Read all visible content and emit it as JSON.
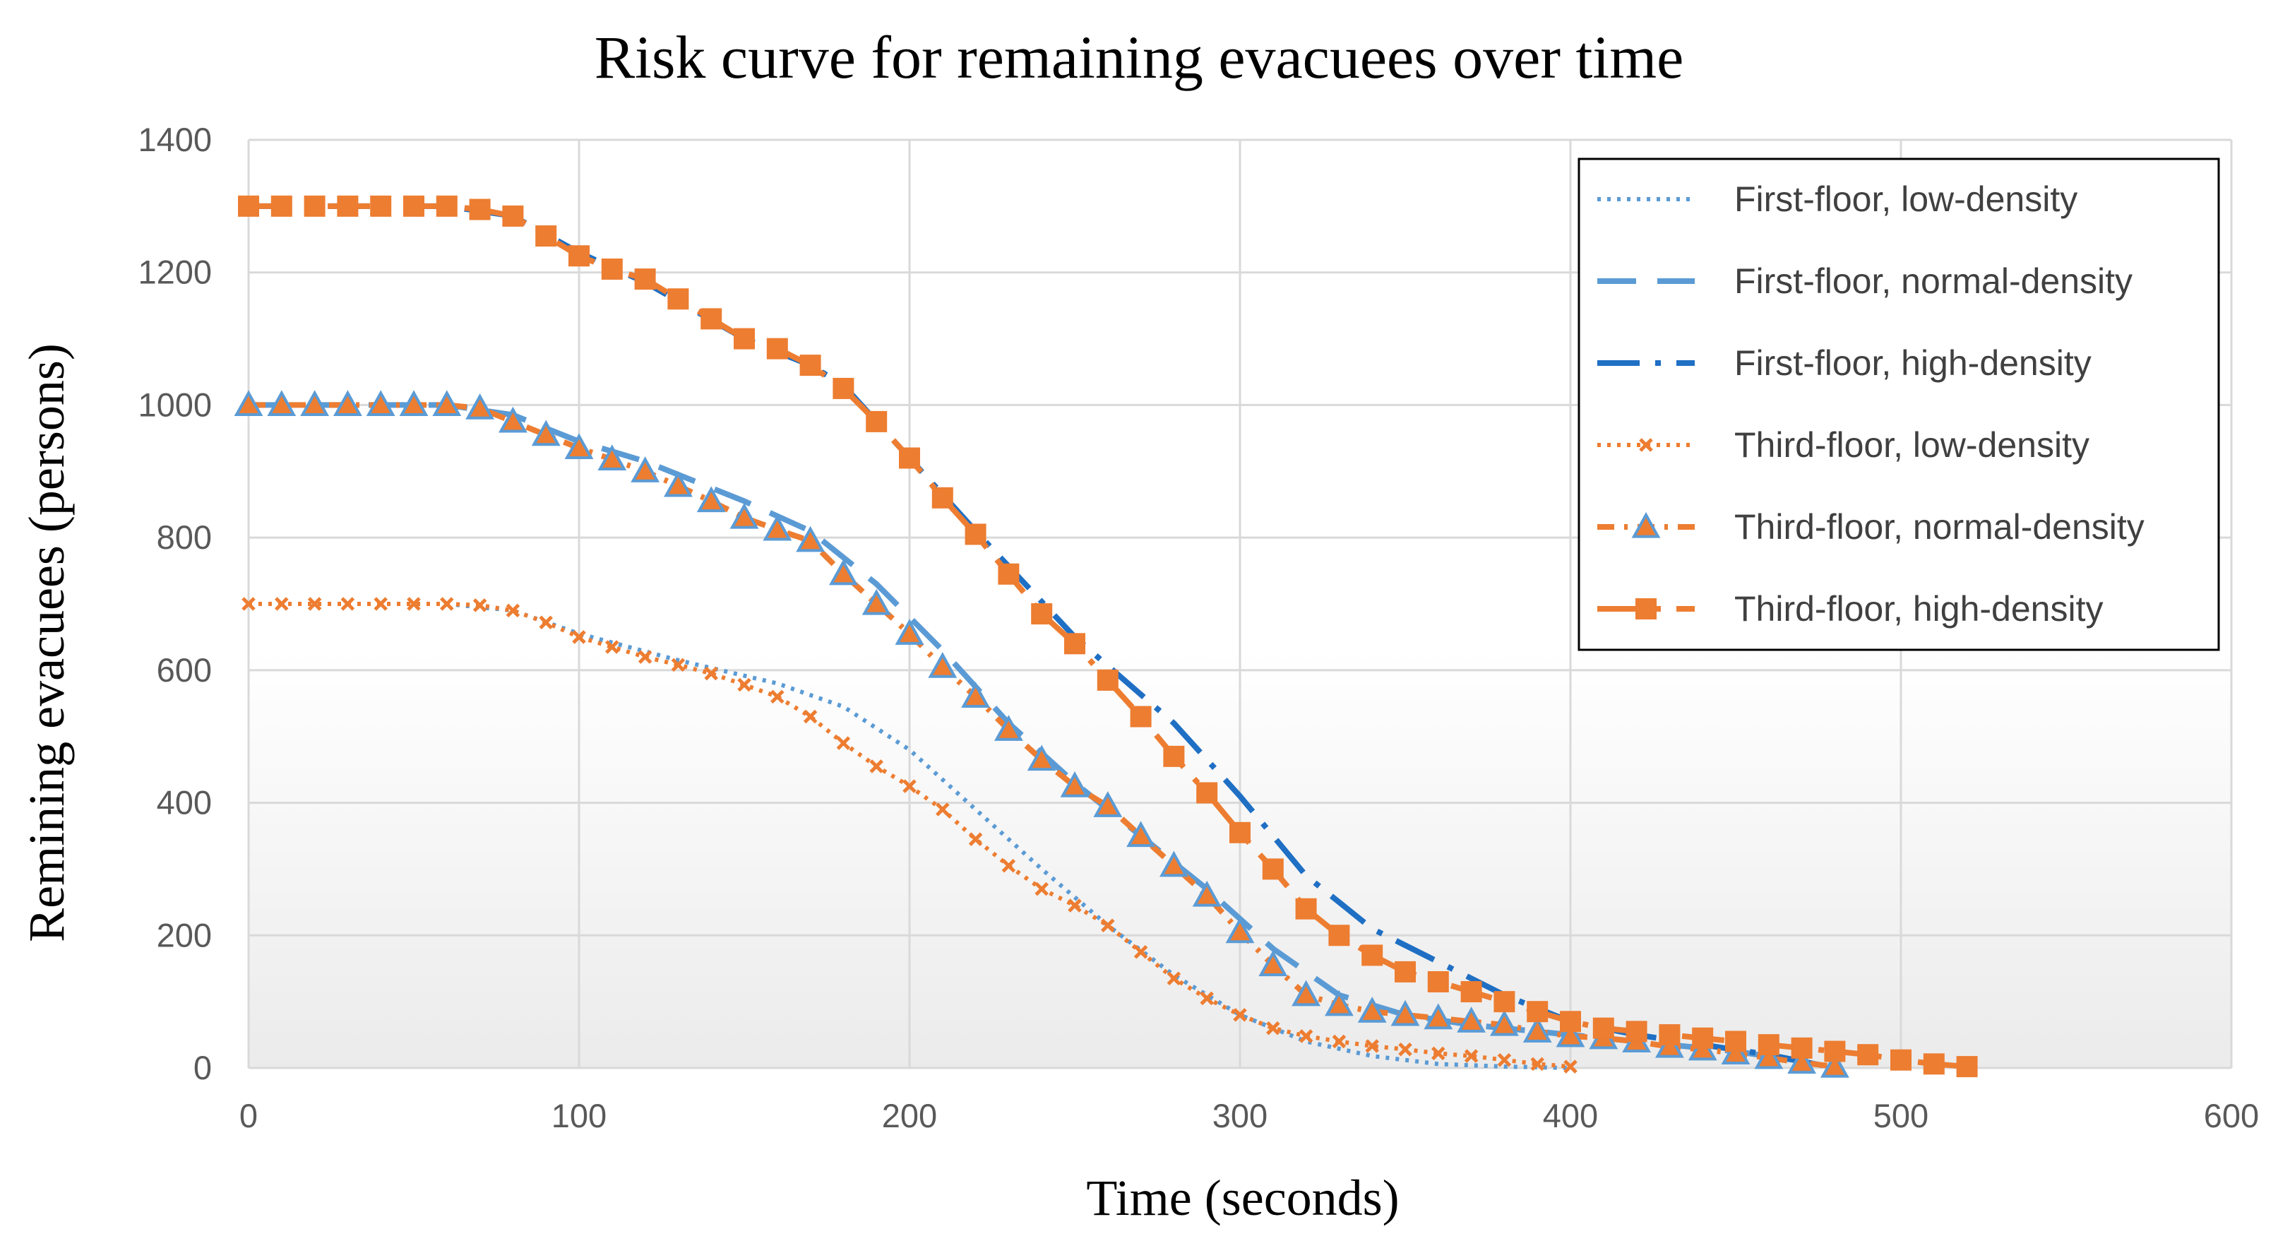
{
  "chart_data": {
    "type": "line",
    "title": "Risk curve for remaining evacuees over time",
    "xlabel": "Time (seconds)",
    "ylabel": "Remining evacuees (persons)",
    "xlim": [
      0,
      600
    ],
    "ylim": [
      0,
      1400
    ],
    "xticks": [
      0,
      100,
      200,
      300,
      400,
      500,
      600
    ],
    "yticks": [
      0,
      200,
      400,
      600,
      800,
      1000,
      1200,
      1400
    ],
    "grid": true,
    "legend_position": "top-right",
    "series": [
      {
        "name": "First-floor, low-density",
        "color": "#5B9BD5",
        "line_style": "dotted",
        "marker": "none",
        "x": [
          0,
          60,
          80,
          100,
          130,
          160,
          180,
          200,
          220,
          240,
          260,
          280,
          300,
          320,
          340,
          360,
          380,
          400
        ],
        "y": [
          700,
          700,
          690,
          655,
          615,
          580,
          545,
          480,
          390,
          300,
          215,
          140,
          80,
          40,
          18,
          6,
          2,
          0
        ]
      },
      {
        "name": "First-floor, normal-density",
        "color": "#5B9BD5",
        "line_style": "long-dash",
        "marker": "none",
        "x": [
          0,
          60,
          80,
          100,
          120,
          150,
          170,
          190,
          210,
          230,
          250,
          270,
          290,
          310,
          330,
          350,
          370,
          390,
          410,
          430,
          450,
          470,
          480
        ],
        "y": [
          1000,
          1000,
          985,
          945,
          915,
          855,
          810,
          730,
          630,
          520,
          430,
          350,
          270,
          180,
          110,
          80,
          65,
          55,
          45,
          35,
          25,
          10,
          0
        ]
      },
      {
        "name": "First-floor, high-density",
        "color": "#1F6FC4",
        "line_style": "long-dash-dot",
        "marker": "none",
        "x": [
          0,
          60,
          80,
          100,
          120,
          150,
          170,
          180,
          200,
          220,
          250,
          280,
          300,
          320,
          340,
          360,
          380,
          400,
          420,
          440,
          460,
          480
        ],
        "y": [
          1300,
          1300,
          1285,
          1230,
          1185,
          1100,
          1060,
          1030,
          920,
          810,
          650,
          520,
          410,
          290,
          210,
          160,
          110,
          70,
          50,
          35,
          20,
          0
        ]
      },
      {
        "name": "Third-floor, low-density",
        "color": "#ED7D31",
        "line_style": "dotted",
        "marker": "x",
        "x": [
          0,
          10,
          20,
          30,
          40,
          50,
          60,
          70,
          80,
          90,
          100,
          110,
          120,
          130,
          140,
          150,
          160,
          170,
          180,
          190,
          200,
          210,
          220,
          230,
          240,
          250,
          260,
          270,
          280,
          290,
          300,
          310,
          320,
          330,
          340,
          350,
          360,
          370,
          380,
          390,
          400
        ],
        "y": [
          700,
          700,
          700,
          700,
          700,
          700,
          700,
          698,
          690,
          672,
          650,
          635,
          620,
          608,
          595,
          578,
          560,
          530,
          490,
          455,
          425,
          390,
          345,
          305,
          270,
          245,
          215,
          175,
          135,
          105,
          80,
          60,
          48,
          40,
          33,
          28,
          22,
          18,
          12,
          6,
          2
        ]
      },
      {
        "name": "Third-floor, normal-density",
        "color": "#ED7D31",
        "line_style": "dash-dot",
        "marker": "triangle",
        "marker_fill": "#ED7D31",
        "marker_edge": "#5B9BD5",
        "x": [
          0,
          10,
          20,
          30,
          40,
          50,
          60,
          70,
          80,
          90,
          100,
          110,
          120,
          130,
          140,
          150,
          160,
          170,
          180,
          190,
          200,
          210,
          220,
          230,
          240,
          250,
          260,
          270,
          280,
          290,
          300,
          310,
          320,
          330,
          340,
          350,
          360,
          370,
          380,
          390,
          400,
          410,
          420,
          430,
          440,
          450,
          460,
          470,
          480
        ],
        "y": [
          1000,
          1000,
          1000,
          1000,
          1000,
          1000,
          1000,
          995,
          975,
          955,
          935,
          918,
          900,
          878,
          855,
          830,
          812,
          795,
          745,
          700,
          655,
          605,
          560,
          510,
          465,
          425,
          395,
          350,
          305,
          260,
          205,
          155,
          110,
          95,
          85,
          80,
          75,
          70,
          65,
          55,
          48,
          45,
          40,
          32,
          28,
          22,
          15,
          8,
          2
        ]
      },
      {
        "name": "Third-floor, high-density",
        "color": "#ED7D31",
        "line_style": "long-dash-dot",
        "marker": "square",
        "marker_fill": "#ED7D31",
        "marker_edge": "#ED7D31",
        "x": [
          0,
          10,
          20,
          30,
          40,
          50,
          60,
          70,
          80,
          90,
          100,
          110,
          120,
          130,
          140,
          150,
          160,
          170,
          180,
          190,
          200,
          210,
          220,
          230,
          240,
          250,
          260,
          270,
          280,
          290,
          300,
          310,
          320,
          330,
          340,
          350,
          360,
          370,
          380,
          390,
          400,
          410,
          420,
          430,
          440,
          450,
          460,
          470,
          480,
          490,
          500,
          510,
          520
        ],
        "y": [
          1300,
          1300,
          1300,
          1300,
          1300,
          1300,
          1300,
          1295,
          1285,
          1255,
          1225,
          1205,
          1190,
          1160,
          1130,
          1100,
          1085,
          1060,
          1025,
          975,
          920,
          860,
          805,
          745,
          685,
          640,
          585,
          530,
          470,
          415,
          355,
          300,
          240,
          200,
          170,
          145,
          130,
          115,
          100,
          85,
          70,
          60,
          55,
          50,
          45,
          40,
          35,
          30,
          25,
          20,
          12,
          6,
          2
        ]
      }
    ]
  }
}
